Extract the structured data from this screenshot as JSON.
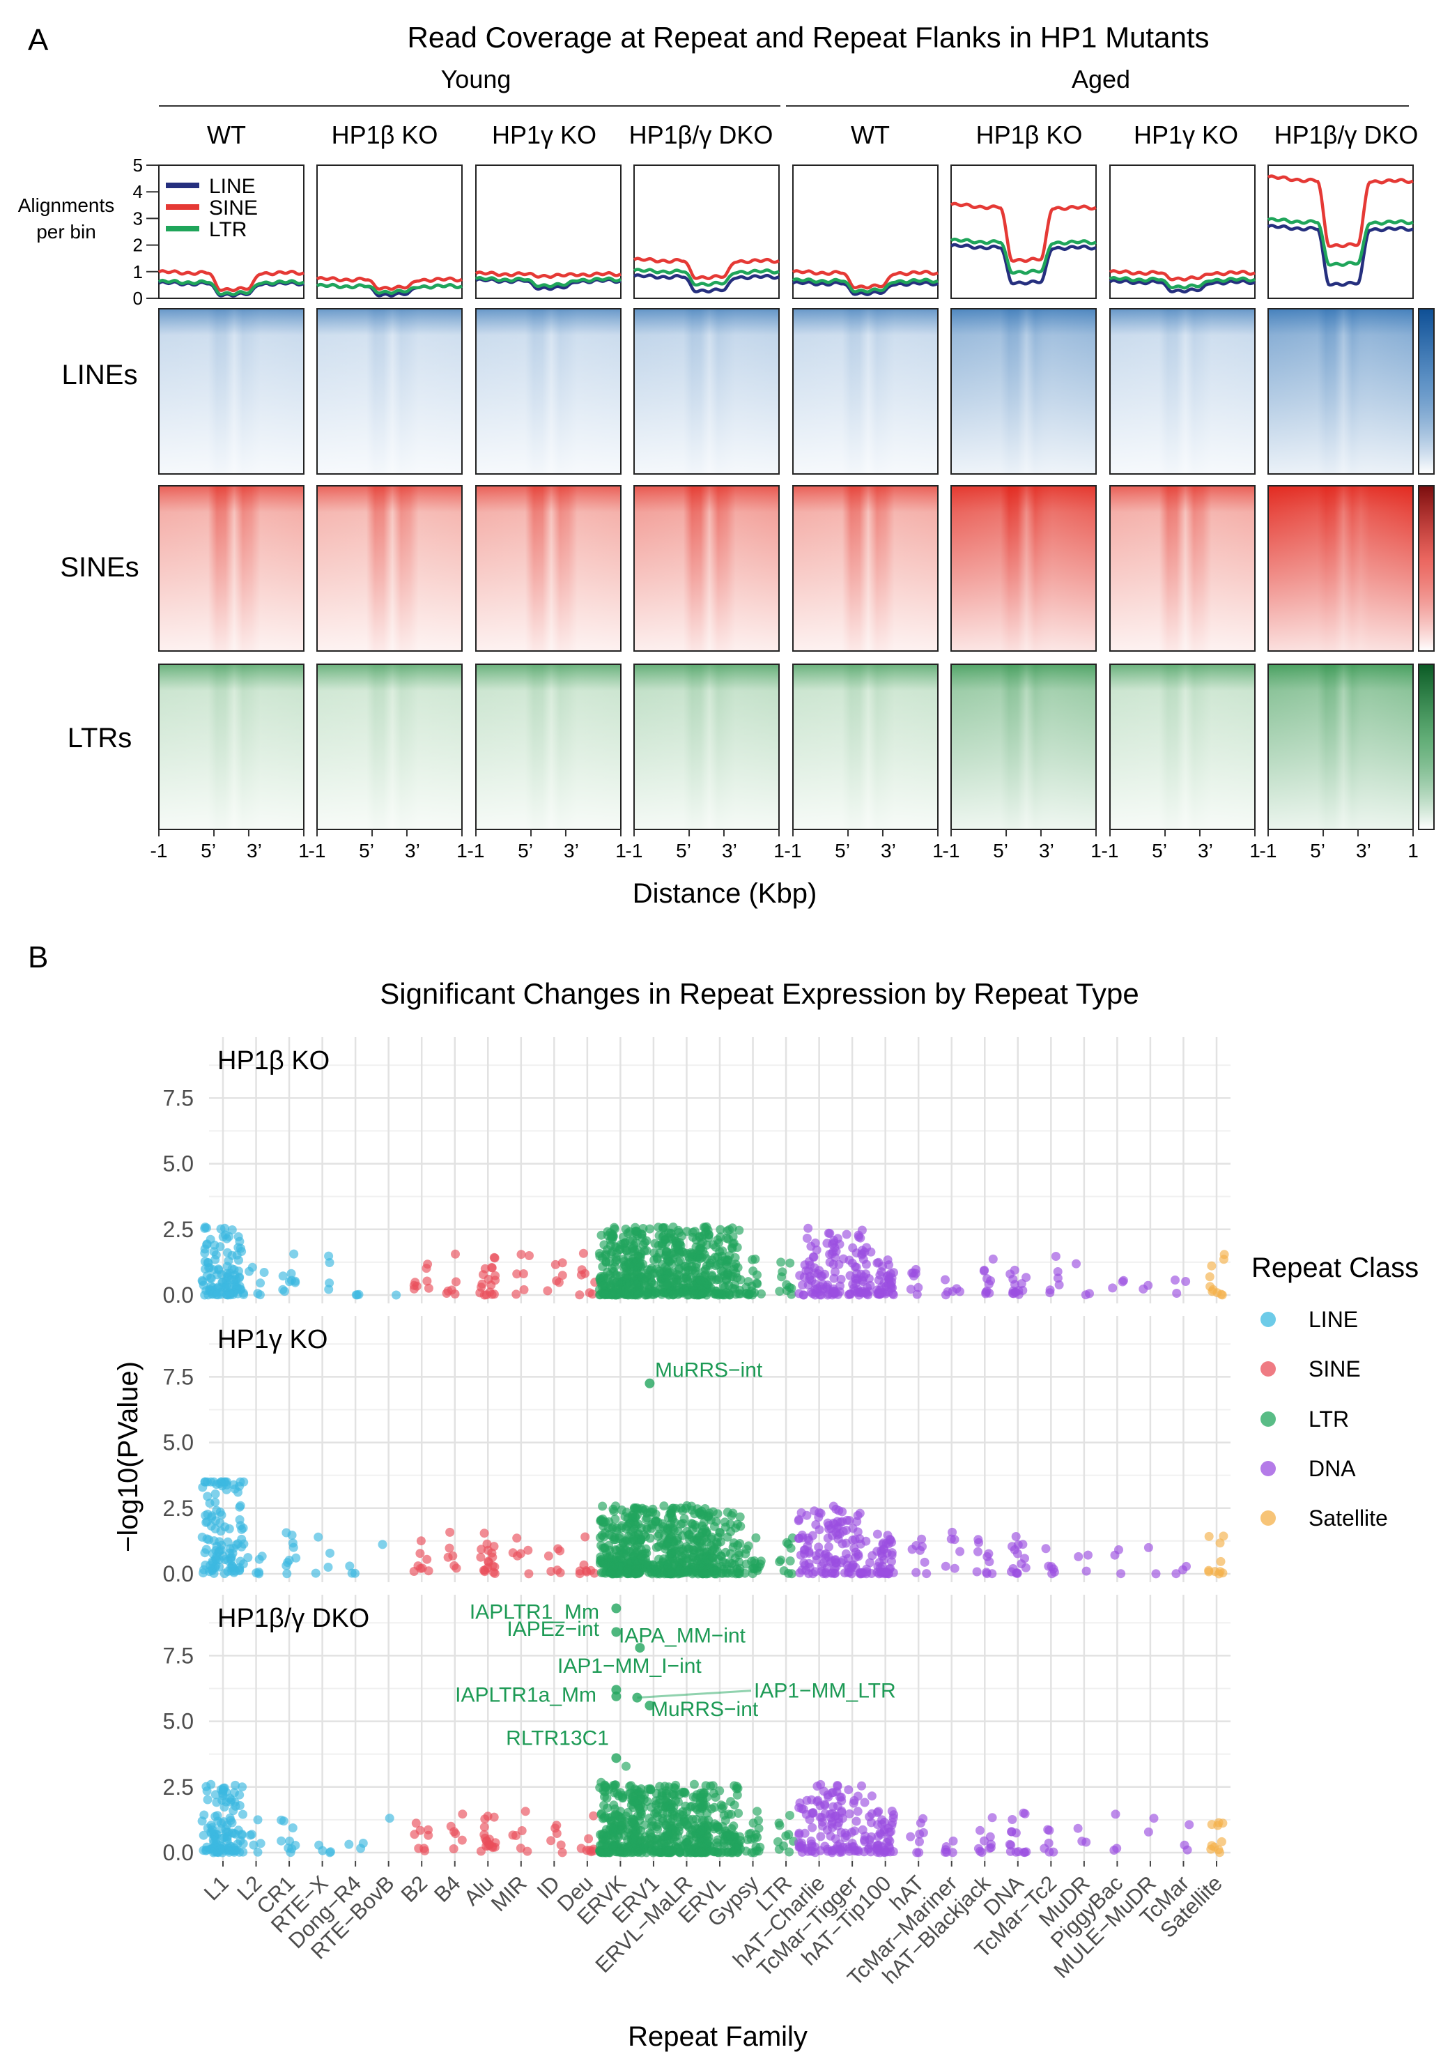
{
  "panel_a": {
    "letter": "A",
    "title": "Read Coverage at Repeat and Repeat Flanks in HP1 Mutants",
    "groups": [
      "Young",
      "Aged"
    ],
    "conditions": [
      "WT",
      "HP1β KO",
      "HP1γ KO",
      "HP1β/γ DKO",
      "WT",
      "HP1β KO",
      "HP1γ KO",
      "HP1β/γ DKO"
    ],
    "profile_ylabel_line1": "Alignments",
    "profile_ylabel_line2": "per bin",
    "profile_yticks": [
      "0",
      "1",
      "2",
      "3",
      "4",
      "5"
    ],
    "legend": [
      {
        "label": "LINE",
        "color": "#252f7e"
      },
      {
        "label": "SINE",
        "color": "#e53935"
      },
      {
        "label": "LTR",
        "color": "#1fa55a"
      }
    ],
    "heatmap_rows": [
      {
        "label": "LINEs",
        "color": "#1b64ad"
      },
      {
        "label": "SINEs",
        "color": "#e2261c"
      },
      {
        "label": "LTRs",
        "color": "#1e8a3c"
      }
    ],
    "x_ticks": [
      "-1",
      "5’",
      "3’",
      "1"
    ],
    "xlabel": "Distance (Kbp)"
  },
  "panel_b": {
    "letter": "B",
    "title": "Significant Changes in Repeat Expression by Repeat Type",
    "facets": [
      "HP1β KO",
      "HP1γ KO",
      "HP1β/γ DKO"
    ],
    "yticks": [
      "0.0",
      "2.5",
      "5.0",
      "7.5"
    ],
    "ylabel": "−log10(PValue)",
    "xlabel": "Repeat Family",
    "families": [
      "L1",
      "L2",
      "CR1",
      "RTE−X",
      "Dong−R4",
      "RTE−BovB",
      "B2",
      "B4",
      "Alu",
      "MIR",
      "ID",
      "Deu",
      "ERVK",
      "ERV1",
      "ERVL−MaLR",
      "ERVL",
      "Gypsy",
      "LTR",
      "hAT−Charlie",
      "TcMar−Tigger",
      "hAT−Tip100",
      "hAT",
      "TcMar−Mariner",
      "hAT−Blackjack",
      "DNA",
      "TcMar−Tc2",
      "MuDR",
      "PiggyBac",
      "MULE−MuDR",
      "TcMar",
      "Satellite"
    ],
    "legend_title": "Repeat Class",
    "classes": [
      {
        "label": "LINE",
        "color": "#3cb9e0"
      },
      {
        "label": "SINE",
        "color": "#e94f5a"
      },
      {
        "label": "LTR",
        "color": "#22a55e"
      },
      {
        "label": "DNA",
        "color": "#9b4fe0"
      },
      {
        "label": "Satellite",
        "color": "#f4b04a"
      }
    ],
    "annotations": {
      "gamma": [
        {
          "label": "MuRRS−int"
        }
      ],
      "dko": [
        {
          "label": "IAPLTR1_Mm"
        },
        {
          "label": "IAPA_MM−int"
        },
        {
          "label": "IAPEz−int"
        },
        {
          "label": "IAP1−MM_I−int"
        },
        {
          "label": "IAP1−MM_LTR"
        },
        {
          "label": "IAPLTR1a_Mm"
        },
        {
          "label": "MuRRS−int"
        },
        {
          "label": "RLTR13C1"
        }
      ]
    }
  },
  "chart_data": [
    {
      "type": "line",
      "title": "Read Coverage at Repeat and Repeat Flanks in HP1 Mutants",
      "xlabel": "Distance (Kbp)",
      "ylabel": "Alignments per bin",
      "ylim": [
        0,
        5
      ],
      "x": [
        "-1",
        "5’",
        "3’",
        "1"
      ],
      "panels": [
        {
          "group": "Young",
          "condition": "WT",
          "series": [
            {
              "name": "LINE",
              "flank": 0.55,
              "body": 0.15
            },
            {
              "name": "SINE",
              "flank": 0.95,
              "body": 0.35
            },
            {
              "name": "LTR",
              "flank": 0.6,
              "body": 0.2
            }
          ]
        },
        {
          "group": "Young",
          "condition": "HP1β KO",
          "series": [
            {
              "name": "LINE",
              "flank": 0.45,
              "body": 0.15
            },
            {
              "name": "SINE",
              "flank": 0.7,
              "body": 0.4
            },
            {
              "name": "LTR",
              "flank": 0.45,
              "body": 0.25
            }
          ]
        },
        {
          "group": "Young",
          "condition": "HP1γ KO",
          "series": [
            {
              "name": "LINE",
              "flank": 0.65,
              "body": 0.4
            },
            {
              "name": "SINE",
              "flank": 0.9,
              "body": 0.85
            },
            {
              "name": "LTR",
              "flank": 0.7,
              "body": 0.5
            }
          ]
        },
        {
          "group": "Young",
          "condition": "HP1β/γ DKO",
          "series": [
            {
              "name": "LINE",
              "flank": 0.8,
              "body": 0.3
            },
            {
              "name": "SINE",
              "flank": 1.4,
              "body": 0.8
            },
            {
              "name": "LTR",
              "flank": 1.0,
              "body": 0.55
            }
          ]
        },
        {
          "group": "Aged",
          "condition": "WT",
          "series": [
            {
              "name": "LINE",
              "flank": 0.55,
              "body": 0.2
            },
            {
              "name": "SINE",
              "flank": 0.95,
              "body": 0.45
            },
            {
              "name": "LTR",
              "flank": 0.65,
              "body": 0.3
            }
          ]
        },
        {
          "group": "Aged",
          "condition": "HP1β KO",
          "series": [
            {
              "name": "LINE",
              "flank": 1.9,
              "body": 0.6
            },
            {
              "name": "SINE",
              "flank": 3.4,
              "body": 1.45
            },
            {
              "name": "LTR",
              "flank": 2.1,
              "body": 1.0
            }
          ]
        },
        {
          "group": "Aged",
          "condition": "HP1γ KO",
          "series": [
            {
              "name": "LINE",
              "flank": 0.6,
              "body": 0.3
            },
            {
              "name": "SINE",
              "flank": 0.95,
              "body": 0.75
            },
            {
              "name": "LTR",
              "flank": 0.7,
              "body": 0.45
            }
          ]
        },
        {
          "group": "Aged",
          "condition": "HP1β/γ DKO",
          "series": [
            {
              "name": "LINE",
              "flank": 2.6,
              "body": 0.55
            },
            {
              "name": "SINE",
              "flank": 4.4,
              "body": 2.0
            },
            {
              "name": "LTR",
              "flank": 2.85,
              "body": 1.3
            }
          ]
        }
      ]
    },
    {
      "type": "scatter",
      "title": "Significant Changes in Repeat Expression by Repeat Type",
      "xlabel": "Repeat Family",
      "ylabel": "−log10(PValue)",
      "ylim": [
        0,
        9.5
      ],
      "facets": [
        {
          "name": "HP1β KO",
          "highlighted": []
        },
        {
          "name": "HP1γ KO",
          "highlighted": [
            {
              "label": "MuRRS−int",
              "family": "ERVK",
              "y": 7.25
            }
          ]
        },
        {
          "name": "HP1β/γ DKO",
          "highlighted": [
            {
              "label": "IAPLTR1_Mm",
              "family": "ERVK",
              "y": 9.3
            },
            {
              "label": "IAPEz−int",
              "family": "ERVK",
              "y": 8.4
            },
            {
              "label": "IAPA_MM−int",
              "family": "ERVK",
              "y": 7.8
            },
            {
              "label": "IAP1−MM_I−int",
              "family": "ERVK",
              "y": 6.2
            },
            {
              "label": "IAPLTR1a_Mm",
              "family": "ERVK",
              "y": 5.95
            },
            {
              "label": "IAP1−MM_LTR",
              "family": "ERVK",
              "y": 5.9
            },
            {
              "label": "MuRRS−int",
              "family": "ERVK",
              "y": 5.6
            },
            {
              "label": "RLTR13C1",
              "family": "ERVK",
              "y": 3.6
            }
          ]
        }
      ]
    }
  ]
}
